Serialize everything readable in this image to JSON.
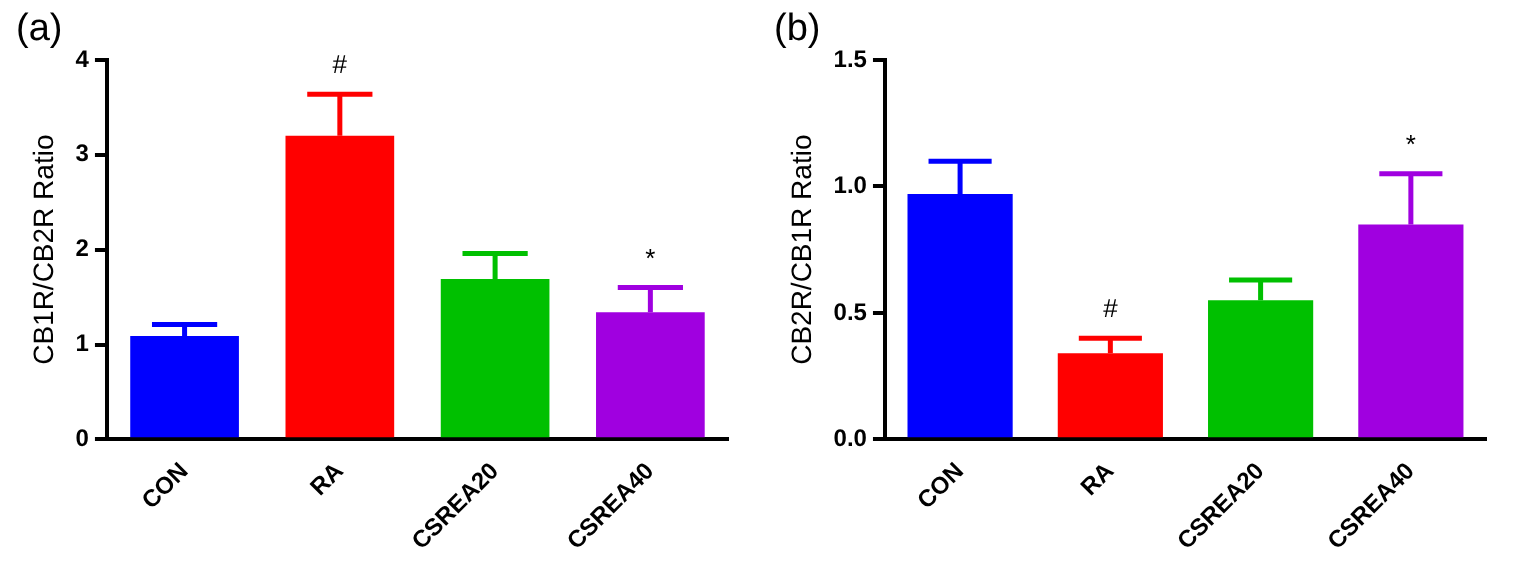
{
  "chart_data": [
    {
      "type": "bar",
      "title": "(a)",
      "ylabel": "CB1R/CB2R Ratio",
      "categories": [
        "CON",
        "RA",
        "CSREA20",
        "CSREA40"
      ],
      "values": [
        1.09,
        3.2,
        1.69,
        1.34
      ],
      "errors": [
        [
          1.09,
          1.21
        ],
        [
          3.2,
          3.64
        ],
        [
          1.69,
          1.96
        ],
        [
          1.34,
          1.6
        ]
      ],
      "colors": [
        "#0000ff",
        "#ff0000",
        "#00c000",
        "#a000e0"
      ],
      "ylim": [
        0,
        4
      ],
      "yticks": [
        0,
        1,
        2,
        3,
        4
      ],
      "grid": false,
      "legend": false,
      "annotations": [
        {
          "text": "#",
          "x": "RA",
          "y": 3.64
        },
        {
          "text": "*",
          "x": "CSREA40",
          "y": 1.6
        }
      ]
    },
    {
      "type": "bar",
      "title": "(b)",
      "ylabel": "CB2R/CB1R Ratio",
      "categories": [
        "CON",
        "RA",
        "CSREA20",
        "CSREA40"
      ],
      "values": [
        0.97,
        0.34,
        0.55,
        0.85
      ],
      "errors": [
        [
          0.97,
          1.1
        ],
        [
          0.34,
          0.4
        ],
        [
          0.55,
          0.63
        ],
        [
          0.85,
          1.05
        ]
      ],
      "colors": [
        "#0000ff",
        "#ff0000",
        "#00c000",
        "#a000e0"
      ],
      "ylim": [
        0,
        1.5
      ],
      "yticks": [
        {
          "value": 0,
          "label": "0.0"
        },
        {
          "value": 0.5,
          "label": "0.5"
        },
        {
          "value": 1,
          "label": "1.0"
        },
        {
          "value": 1.5,
          "label": "1.5"
        }
      ],
      "grid": false,
      "legend": false,
      "annotations": [
        {
          "text": "#",
          "x": "RA",
          "y": 0.4
        },
        {
          "text": "*",
          "x": "CSREA40",
          "y": 1.05
        }
      ]
    }
  ]
}
